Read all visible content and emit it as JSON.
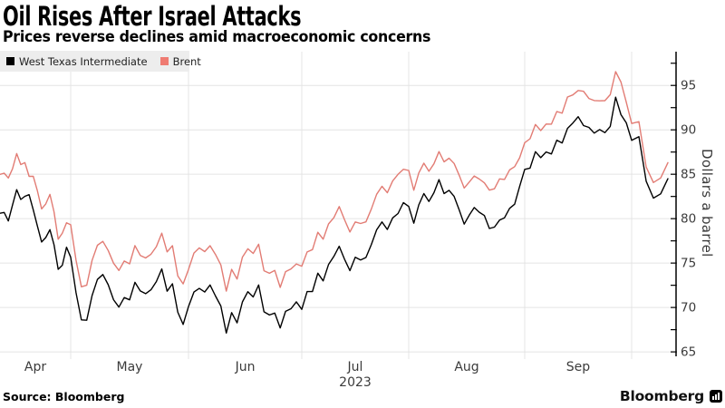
{
  "header": {
    "title": "Oil Rises After Israel Attacks",
    "subtitle": "Prices reverse declines amid macroeconomic concerns"
  },
  "legend": {
    "items": [
      {
        "label": "West Texas Intermediate",
        "color": "#000000"
      },
      {
        "label": "Brent",
        "color": "#ef7b72"
      }
    ]
  },
  "source": {
    "text": "Source: Bloomberg"
  },
  "brand": {
    "name": "Bloomberg"
  },
  "chart_data": {
    "type": "line",
    "title": "Oil Rises After Israel Attacks",
    "subtitle": "Prices reverse declines amid macroeconomic concerns",
    "ylabel": "Dollars a barrel",
    "ylim": [
      64.5,
      98.8
    ],
    "yticks": [
      65,
      70,
      75,
      80,
      85,
      90,
      95
    ],
    "minor_tick_step": 2.5,
    "grid": true,
    "legend_position": "top-left",
    "x_range": "Apr 2023 - early Oct 2023, daily",
    "year_label": "2023",
    "months": [
      {
        "label": "Apr",
        "points": 17
      },
      {
        "label": "May",
        "points": 22
      },
      {
        "label": "Jun",
        "points": 21
      },
      {
        "label": "Jul",
        "points": 20
      },
      {
        "label": "Aug",
        "points": 23
      },
      {
        "label": "Sep",
        "points": 20
      },
      {
        "label": "",
        "points": 6
      }
    ],
    "series": [
      {
        "name": "West Texas Intermediate",
        "color": "#000000",
        "values": [
          80.61,
          80.7,
          79.74,
          81.53,
          83.26,
          82.16,
          82.52,
          82.7,
          81.0,
          79.16,
          77.37,
          77.87,
          78.76,
          77.07,
          74.3,
          74.76,
          76.78,
          75.66,
          71.66,
          68.6,
          68.56,
          71.34,
          73.16,
          73.71,
          72.56,
          70.87,
          70.04,
          71.11,
          70.86,
          72.83,
          71.86,
          71.55,
          71.99,
          72.91,
          74.34,
          71.83,
          72.67,
          69.46,
          68.09,
          70.1,
          71.74,
          72.15,
          71.74,
          72.53,
          71.29,
          70.17,
          67.12,
          69.42,
          68.27,
          70.62,
          71.78,
          71.19,
          72.53,
          69.51,
          69.16,
          69.37,
          67.7,
          69.56,
          69.86,
          70.64,
          69.79,
          71.79,
          71.8,
          73.86,
          72.99,
          74.83,
          75.75,
          76.89,
          75.42,
          74.15,
          75.66,
          75.35,
          75.63,
          77.07,
          78.74,
          79.63,
          78.78,
          80.09,
          80.58,
          81.8,
          81.37,
          79.49,
          81.55,
          82.82,
          81.94,
          82.92,
          84.4,
          82.82,
          83.19,
          82.51,
          80.99,
          79.38,
          80.39,
          81.25,
          80.72,
          80.35,
          78.89,
          79.05,
          79.83,
          80.1,
          81.16,
          81.63,
          83.63,
          85.55,
          85.69,
          87.54,
          86.87,
          87.51,
          87.29,
          88.84,
          88.52,
          90.16,
          90.77,
          91.48,
          90.48,
          90.28,
          89.63,
          90.03,
          89.68,
          90.39,
          93.68,
          91.71,
          90.79,
          88.82,
          89.23,
          84.22,
          82.31,
          82.79,
          84.5
        ]
      },
      {
        "name": "Brent",
        "color": "#e27c74",
        "values": [
          84.99,
          85.12,
          84.58,
          85.61,
          87.33,
          86.09,
          86.31,
          84.76,
          84.77,
          83.12,
          81.1,
          81.66,
          82.73,
          80.77,
          77.69,
          78.37,
          79.54,
          79.31,
          75.32,
          72.33,
          72.5,
          75.3,
          77.01,
          77.44,
          76.41,
          74.98,
          74.17,
          75.23,
          74.91,
          76.96,
          75.86,
          75.58,
          75.99,
          76.84,
          78.36,
          76.26,
          76.95,
          73.54,
          72.66,
          74.28,
          76.13,
          76.71,
          76.29,
          76.95,
          75.96,
          74.79,
          71.84,
          74.29,
          73.2,
          75.67,
          76.61,
          76.09,
          77.12,
          74.14,
          73.85,
          74.18,
          72.26,
          74.03,
          74.34,
          74.9,
          74.65,
          76.25,
          76.52,
          78.47,
          77.69,
          79.4,
          80.11,
          81.36,
          79.87,
          78.5,
          79.63,
          79.46,
          79.64,
          81.07,
          82.74,
          83.64,
          82.92,
          84.24,
          84.99,
          85.56,
          85.43,
          83.2,
          85.14,
          86.24,
          85.34,
          86.17,
          87.55,
          86.4,
          86.81,
          86.21,
          84.89,
          83.45,
          84.12,
          84.8,
          84.46,
          84.03,
          83.21,
          83.36,
          84.48,
          84.42,
          85.49,
          85.86,
          86.86,
          88.55,
          89.0,
          90.6,
          89.92,
          90.65,
          90.64,
          92.06,
          91.88,
          93.7,
          93.93,
          94.43,
          94.34,
          93.53,
          93.3,
          93.27,
          93.29,
          93.96,
          96.55,
          95.38,
          93.1,
          90.71,
          90.92,
          85.81,
          84.07,
          84.58,
          86.3
        ]
      }
    ]
  }
}
